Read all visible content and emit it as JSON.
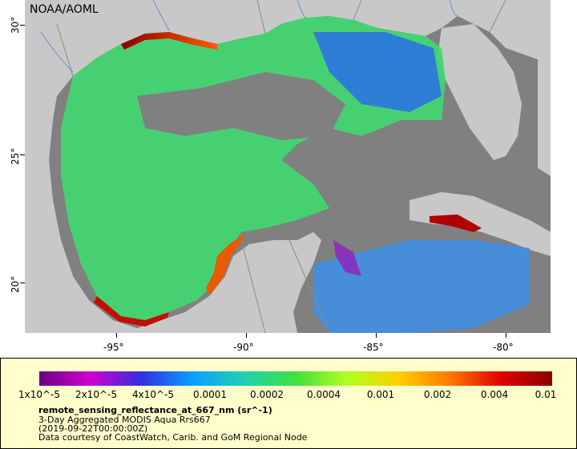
{
  "map": {
    "credit": "NOAA/AOML",
    "lon_labels": [
      "-95°",
      "-90°",
      "-85°",
      "-80°"
    ],
    "lat_labels": [
      "30°",
      "25°",
      "20°"
    ],
    "colors": {
      "ocean_nodata": "#808080",
      "land": "#c8c8c8",
      "border": "#8a8a8a",
      "rivers": "#6a8fd0"
    }
  },
  "legend": {
    "scale_labels": [
      "1x10^-5",
      "2x10^-5",
      "4x10^-5",
      "0.0001",
      "0.0002",
      "0.0004",
      "0.001",
      "0.002",
      "0.004",
      "0.01"
    ],
    "colormap": [
      "#6a0080",
      "#d000d0",
      "#3030e0",
      "#0aa0ff",
      "#20d0b0",
      "#40e040",
      "#b0ff20",
      "#ffd000",
      "#ff7a00",
      "#e00000",
      "#8a0000"
    ],
    "title": "remote_sensing_reflectance_at_667_nm (sr^-1)",
    "line1": "3-Day Aggregated MODIS Aqua Rrs667",
    "line2": "(2019-09-22T00:00:00Z)",
    "line3": "Data courtesy of CoastWatch, Carib. and GoM Regional Node"
  }
}
